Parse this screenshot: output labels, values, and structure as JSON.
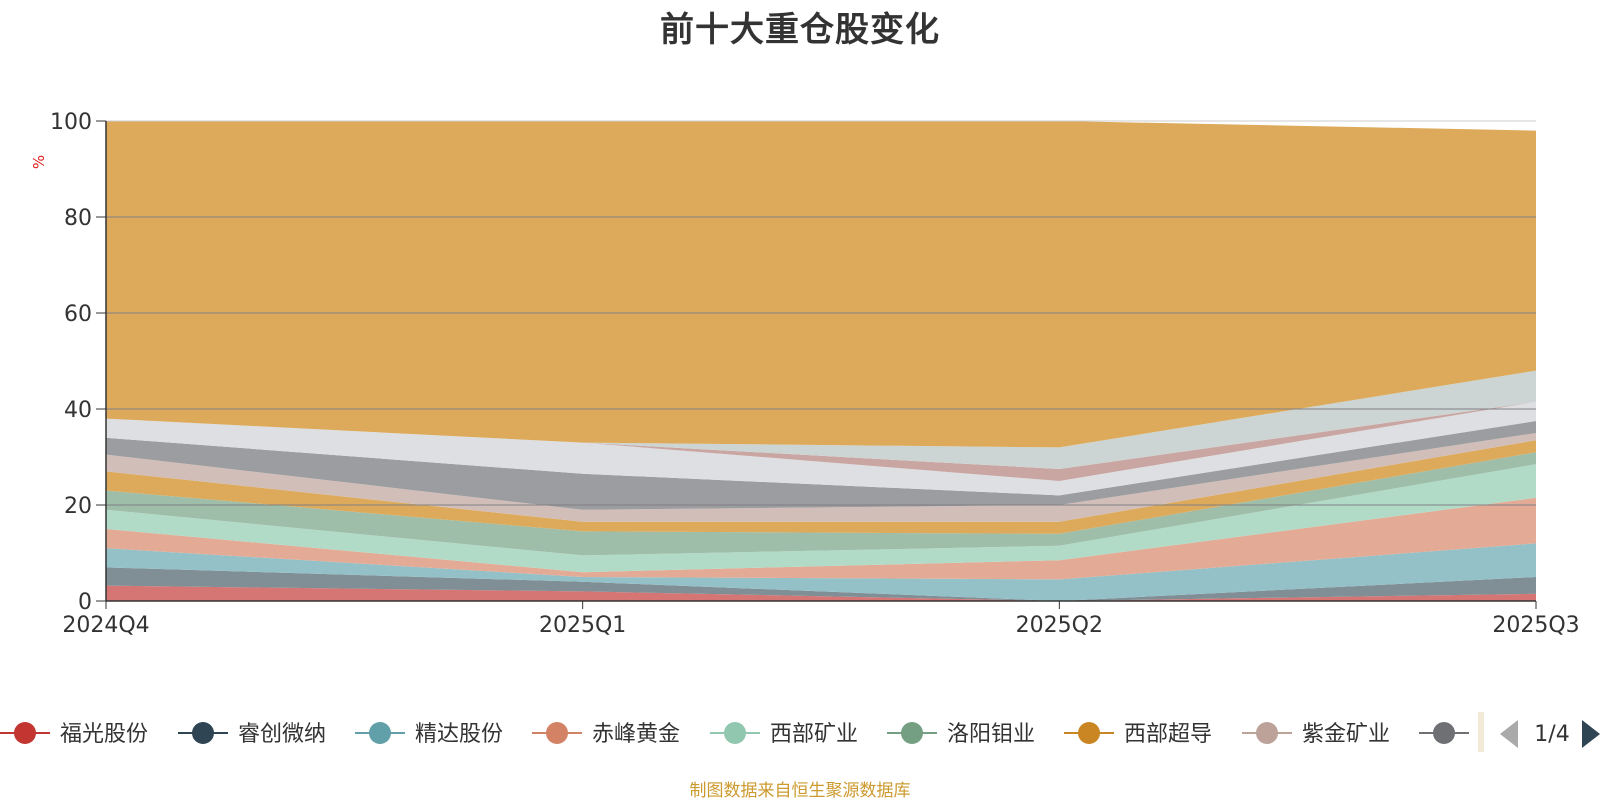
{
  "page": {
    "title": "前十大重仓股变化",
    "source_note": "制图数据来自恒生聚源数据库"
  },
  "legend": {
    "page_indicator": "1/4",
    "prev_icon": "triangle-left-icon",
    "next_icon": "triangle-right-icon"
  },
  "chart_data": {
    "type": "area",
    "title": "前十大重仓股变化",
    "xlabel": "",
    "ylabel": "%",
    "ylim": [
      0,
      100
    ],
    "yticks": [
      0,
      20,
      40,
      60,
      80,
      100
    ],
    "categories": [
      "2024Q4",
      "2025Q1",
      "2025Q2",
      "2025Q3"
    ],
    "grid": true,
    "legend_position": "bottom",
    "stacked_boundaries": [
      {
        "values": [
          0,
          0,
          0,
          0
        ]
      },
      {
        "values": [
          3.2,
          2.0,
          0.0,
          1.5
        ]
      },
      {
        "values": [
          7.0,
          4.0,
          0.0,
          5.0
        ]
      },
      {
        "values": [
          11.0,
          5.0,
          4.5,
          12.0
        ]
      },
      {
        "values": [
          15.0,
          6.0,
          8.5,
          21.5
        ]
      },
      {
        "values": [
          19.0,
          9.5,
          11.5,
          28.5
        ]
      },
      {
        "values": [
          23.0,
          14.5,
          14.0,
          31.0
        ]
      },
      {
        "values": [
          27.0,
          16.5,
          16.5,
          33.5
        ]
      },
      {
        "values": [
          30.5,
          19.0,
          20.0,
          35.0
        ]
      },
      {
        "values": [
          34.0,
          26.5,
          22.0,
          37.5
        ]
      },
      {
        "values": [
          38.0,
          33.0,
          25.0,
          41.5
        ]
      },
      {
        "values": [
          38.0,
          33.0,
          27.5,
          41.5
        ]
      },
      {
        "values": [
          38.0,
          33.0,
          32.0,
          48.0
        ]
      },
      {
        "values": [
          100,
          100,
          100,
          98
        ]
      }
    ],
    "series": [
      {
        "name": "福光股份",
        "color": "#c23531"
      },
      {
        "name": "睿创微纳",
        "color": "#2f4554"
      },
      {
        "name": "精达股份",
        "color": "#61a0a8"
      },
      {
        "name": "赤峰黄金",
        "color": "#d48265"
      },
      {
        "name": "西部矿业",
        "color": "#91c7ae"
      },
      {
        "name": "洛阳钼业",
        "color": "#749f83"
      },
      {
        "name": "西部超导",
        "color": "#ca8622"
      },
      {
        "name": "紫金矿业",
        "color": "#bda29a"
      },
      {
        "name": "",
        "color": "#6e7074"
      }
    ],
    "band_colors": [
      "#d47271",
      "#7d8c93",
      "#92c0c6",
      "#e2a994",
      "#afdac6",
      "#9dbda7",
      "#dba857",
      "#d1bdb7",
      "#9a9b9e",
      "#dcdee2",
      "#c9a4a0",
      "#cbd4d2",
      "#dba857",
      "#97989c"
    ]
  }
}
